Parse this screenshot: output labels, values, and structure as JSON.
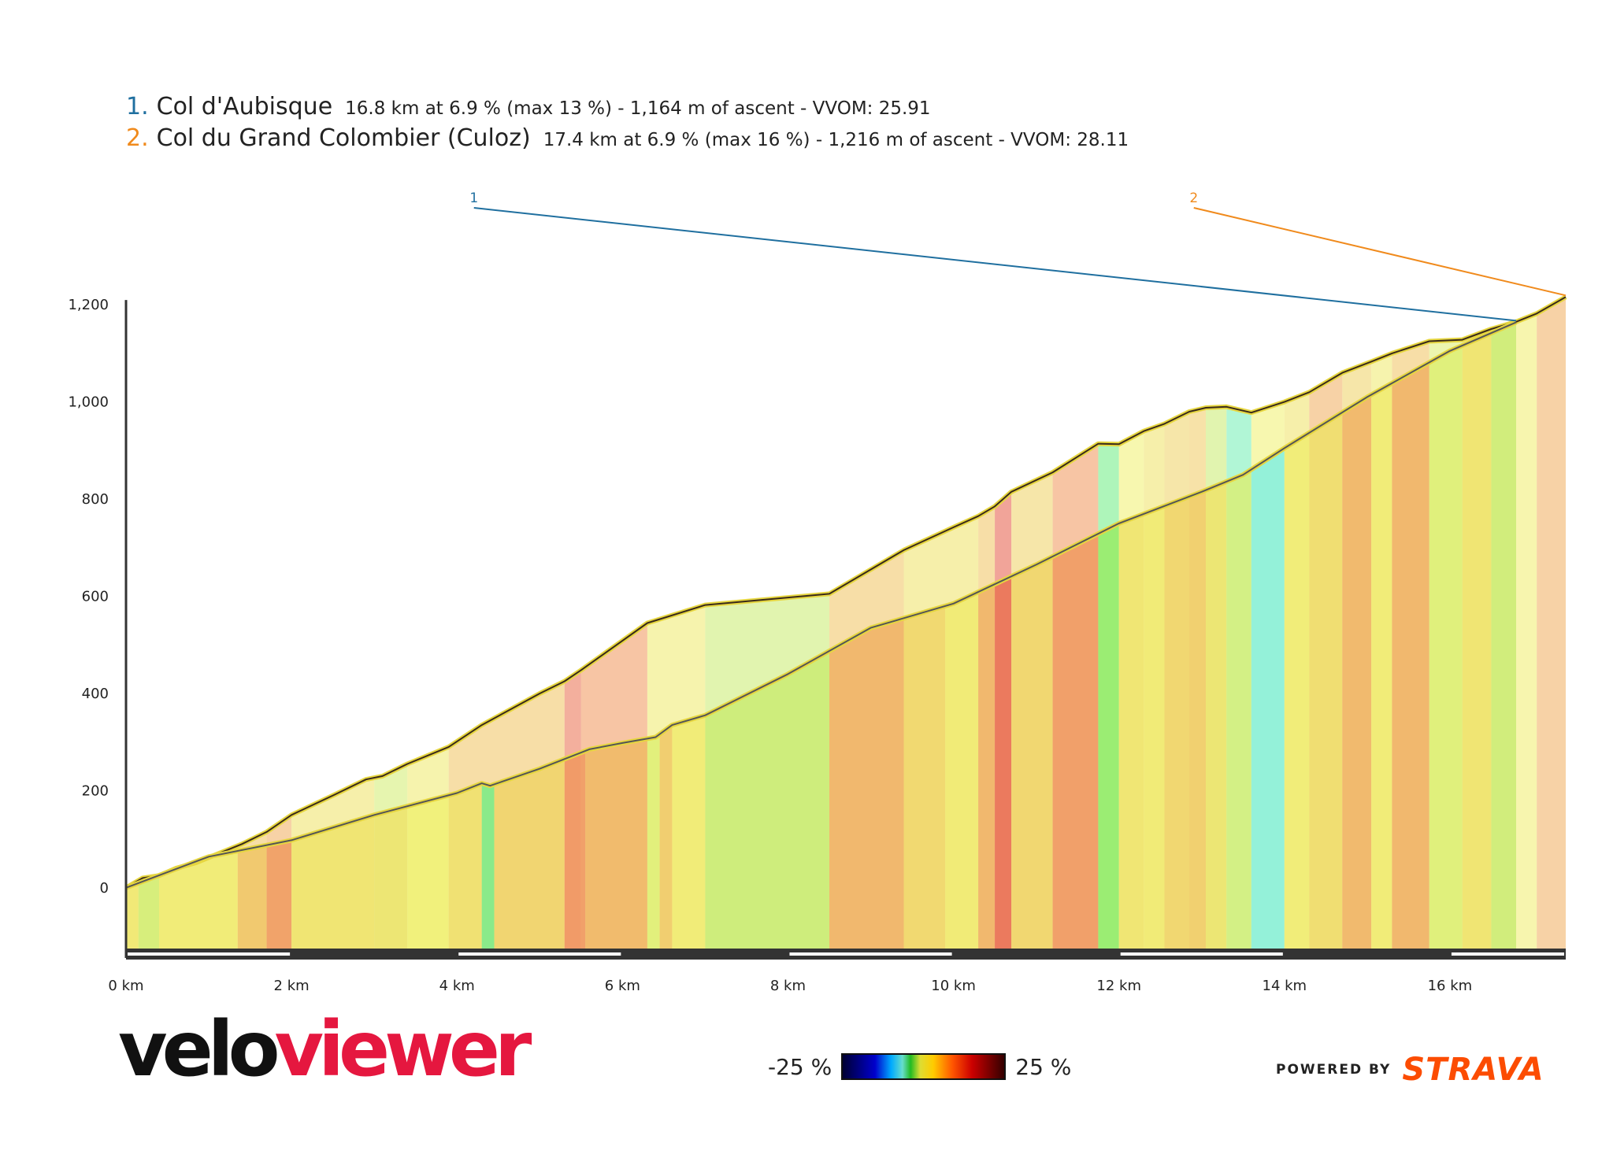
{
  "legend": [
    {
      "number": "1.",
      "name": "Col d'Aubisque",
      "stats": "16.8 km at 6.9 % (max 13 %) - 1,164 m of ascent - VVOM: 25.91",
      "color": "#1f6f9f"
    },
    {
      "number": "2.",
      "name": "Col du Grand Colombier (Culoz)",
      "stats": "17.4 km at 6.9 % (max 16 %) - 1,216 m of ascent - VVOM: 28.11",
      "color": "#f08a1c"
    }
  ],
  "gradient_scale": {
    "min_label": "-25 %",
    "max_label": "25 %"
  },
  "branding": {
    "logo_part1": "velo",
    "logo_part2": "viewer",
    "powered_by": "POWERED BY",
    "strava": "STRAVA"
  },
  "chart_data": {
    "type": "area",
    "title": "",
    "xlabel": "",
    "ylabel": "",
    "xlim": [
      0,
      17.4
    ],
    "ylim": [
      -125,
      1210
    ],
    "x_ticks": [
      0,
      2,
      4,
      6,
      8,
      10,
      12,
      14,
      16
    ],
    "x_tick_labels": [
      "0 km",
      "2 km",
      "4 km",
      "6 km",
      "8 km",
      "10 km",
      "12 km",
      "14 km",
      "16 km"
    ],
    "y_ticks": [
      0,
      200,
      400,
      600,
      800,
      1000,
      1200
    ],
    "y_tick_labels": [
      "0",
      "200",
      "400",
      "600",
      "800",
      "1,000",
      "1,200"
    ],
    "series": [
      {
        "name": "Col d'Aubisque",
        "marker_label": "1",
        "color": "#1f6f9f",
        "points": [
          [
            0,
            0
          ],
          [
            1,
            64
          ],
          [
            2,
            98
          ],
          [
            3,
            150
          ],
          [
            4,
            195
          ],
          [
            4.3,
            215
          ],
          [
            4.4,
            210
          ],
          [
            5,
            245
          ],
          [
            5.6,
            285
          ],
          [
            6,
            298
          ],
          [
            6.4,
            310
          ],
          [
            6.6,
            335
          ],
          [
            7,
            355
          ],
          [
            8,
            440
          ],
          [
            9,
            535
          ],
          [
            9.3,
            550
          ],
          [
            10,
            585
          ],
          [
            11,
            665
          ],
          [
            12,
            750
          ],
          [
            13,
            815
          ],
          [
            13.5,
            850
          ],
          [
            14,
            905
          ],
          [
            15,
            1010
          ],
          [
            16,
            1105
          ],
          [
            16.8,
            1164
          ]
        ],
        "gradient_bands": [
          [
            0,
            0.15,
            5
          ],
          [
            0.15,
            0.4,
            2.5
          ],
          [
            0.4,
            1.35,
            5
          ],
          [
            1.35,
            1.7,
            8
          ],
          [
            1.7,
            2,
            10
          ],
          [
            2,
            3,
            6
          ],
          [
            3,
            3.4,
            6
          ],
          [
            3.4,
            3.9,
            4
          ],
          [
            3.9,
            4.3,
            6
          ],
          [
            4.3,
            4.45,
            -1
          ],
          [
            4.45,
            5.3,
            7
          ],
          [
            5.3,
            5.55,
            10
          ],
          [
            5.55,
            6.3,
            8.5
          ],
          [
            6.3,
            6.45,
            3
          ],
          [
            6.45,
            6.6,
            8
          ],
          [
            6.6,
            7,
            5
          ],
          [
            7,
            8.5,
            2
          ],
          [
            8.5,
            9.4,
            9
          ],
          [
            9.4,
            9.9,
            7
          ],
          [
            9.9,
            10.3,
            5
          ],
          [
            10.3,
            10.5,
            9
          ],
          [
            10.5,
            10.7,
            12
          ],
          [
            10.7,
            11.2,
            7
          ],
          [
            11.2,
            11.75,
            10
          ],
          [
            11.75,
            12,
            1
          ],
          [
            12,
            12.3,
            6
          ],
          [
            12.3,
            12.55,
            5
          ],
          [
            12.55,
            12.85,
            7
          ],
          [
            12.85,
            13.05,
            7.5
          ],
          [
            13.05,
            13.3,
            6
          ],
          [
            13.3,
            13.6,
            3
          ],
          [
            13.6,
            14,
            -3
          ],
          [
            14,
            14.3,
            4.5
          ],
          [
            14.3,
            14.7,
            6
          ],
          [
            14.7,
            15.05,
            9
          ],
          [
            15.05,
            15.3,
            5
          ],
          [
            15.3,
            15.75,
            9
          ],
          [
            15.75,
            16.15,
            3
          ],
          [
            16.15,
            16.5,
            6
          ],
          [
            16.5,
            16.8,
            2
          ],
          [
            16.8,
            17.05,
            4
          ]
        ]
      },
      {
        "name": "Col du Grand Colombier (Culoz)",
        "marker_label": "2",
        "color": "#f08a1c",
        "points": [
          [
            0,
            0
          ],
          [
            0.2,
            20
          ],
          [
            0.4,
            25
          ],
          [
            0.6,
            40
          ],
          [
            0.85,
            52
          ],
          [
            1.4,
            90
          ],
          [
            1.7,
            115
          ],
          [
            2,
            150
          ],
          [
            2.5,
            190
          ],
          [
            2.9,
            223
          ],
          [
            3.1,
            230
          ],
          [
            3.4,
            255
          ],
          [
            3.9,
            290
          ],
          [
            4.3,
            335
          ],
          [
            5,
            400
          ],
          [
            5.3,
            425
          ],
          [
            5.5,
            448
          ],
          [
            6.3,
            545
          ],
          [
            7,
            582
          ],
          [
            8.5,
            605
          ],
          [
            9.4,
            695
          ],
          [
            10,
            742
          ],
          [
            10.3,
            765
          ],
          [
            10.5,
            785
          ],
          [
            10.7,
            815
          ],
          [
            11.2,
            855
          ],
          [
            11.75,
            914
          ],
          [
            12,
            913
          ],
          [
            12.3,
            940
          ],
          [
            12.55,
            955
          ],
          [
            12.85,
            980
          ],
          [
            13.05,
            988
          ],
          [
            13.3,
            990
          ],
          [
            13.6,
            978
          ],
          [
            14,
            1000
          ],
          [
            14.3,
            1020
          ],
          [
            14.7,
            1060
          ],
          [
            15.05,
            1083
          ],
          [
            15.3,
            1100
          ],
          [
            15.75,
            1125
          ],
          [
            16.15,
            1128
          ],
          [
            16.5,
            1150
          ],
          [
            16.8,
            1165
          ],
          [
            17.05,
            1182
          ],
          [
            17.4,
            1216
          ]
        ],
        "gradient_bands": [
          [
            0,
            0.15,
            7
          ],
          [
            0.15,
            0.4,
            2.5
          ],
          [
            0.4,
            1.35,
            5
          ],
          [
            1.35,
            1.7,
            8
          ],
          [
            1.7,
            2,
            9
          ],
          [
            2,
            3,
            6
          ],
          [
            3,
            3.4,
            2.5
          ],
          [
            3.4,
            3.9,
            5
          ],
          [
            3.9,
            5.3,
            8
          ],
          [
            5.3,
            5.5,
            12
          ],
          [
            5.5,
            6.3,
            10
          ],
          [
            6.3,
            7,
            5
          ],
          [
            7,
            8.5,
            2
          ],
          [
            8.5,
            9.4,
            8
          ],
          [
            9.4,
            10.3,
            6
          ],
          [
            10.3,
            10.5,
            8
          ],
          [
            10.5,
            10.7,
            13
          ],
          [
            10.7,
            11.2,
            7
          ],
          [
            11.2,
            11.75,
            10
          ],
          [
            11.75,
            12,
            -1
          ],
          [
            12,
            12.3,
            4
          ],
          [
            12.3,
            12.55,
            6
          ],
          [
            12.55,
            12.85,
            7
          ],
          [
            12.85,
            13.05,
            7.5
          ],
          [
            13.05,
            13.3,
            2
          ],
          [
            13.3,
            13.6,
            -2
          ],
          [
            13.6,
            14,
            4
          ],
          [
            14,
            14.3,
            6
          ],
          [
            14.3,
            14.7,
            9
          ],
          [
            14.7,
            15.05,
            7
          ],
          [
            15.05,
            15.3,
            5
          ],
          [
            15.3,
            15.75,
            8
          ],
          [
            15.75,
            16.15,
            3
          ],
          [
            16.15,
            16.5,
            6
          ],
          [
            16.5,
            16.8,
            3.5
          ],
          [
            16.8,
            17.05,
            4.5
          ],
          [
            17.05,
            17.4,
            9
          ]
        ]
      }
    ]
  }
}
